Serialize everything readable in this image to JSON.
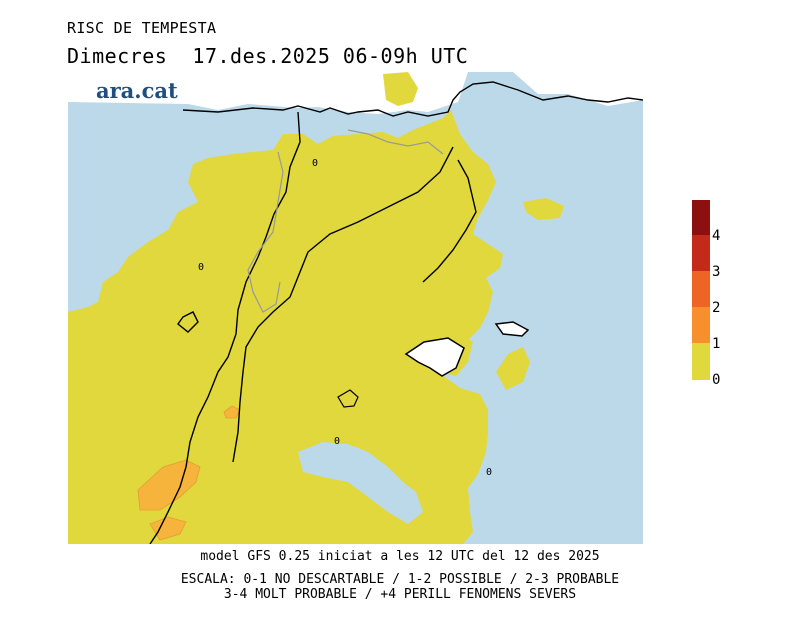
{
  "header": {
    "title": "RISC DE TEMPESTA",
    "subtitle": "Dimecres  17.des.2025 06-09h UTC",
    "brand": "ara.cat"
  },
  "legend": {
    "levels": [
      {
        "label": "0",
        "color": "#e0d83c"
      },
      {
        "label": "1",
        "color": "#f7c23c"
      },
      {
        "label": "2",
        "color": "#f7902c"
      },
      {
        "label": "3",
        "color": "#ed6424"
      },
      {
        "label": "4",
        "color": "#c42a1a"
      },
      {
        "label": "",
        "color": "#8c1010"
      }
    ]
  },
  "map": {
    "sea_color": "#bcd9ea",
    "land_risk_color": "#e0d83c",
    "moderate_risk_color": "#f7b43c",
    "markers": [
      "0",
      "0",
      "0",
      "0"
    ]
  },
  "footer": {
    "model_line": "model GFS 0.25 iniciat a les 12 UTC del 12 des 2025",
    "scale_line_1": "ESCALA: 0-1 NO DESCARTABLE / 1-2 POSSIBLE / 2-3 PROBABLE",
    "scale_line_2": "3-4 MOLT PROBABLE / +4 PERILL FENOMENS SEVERS"
  }
}
